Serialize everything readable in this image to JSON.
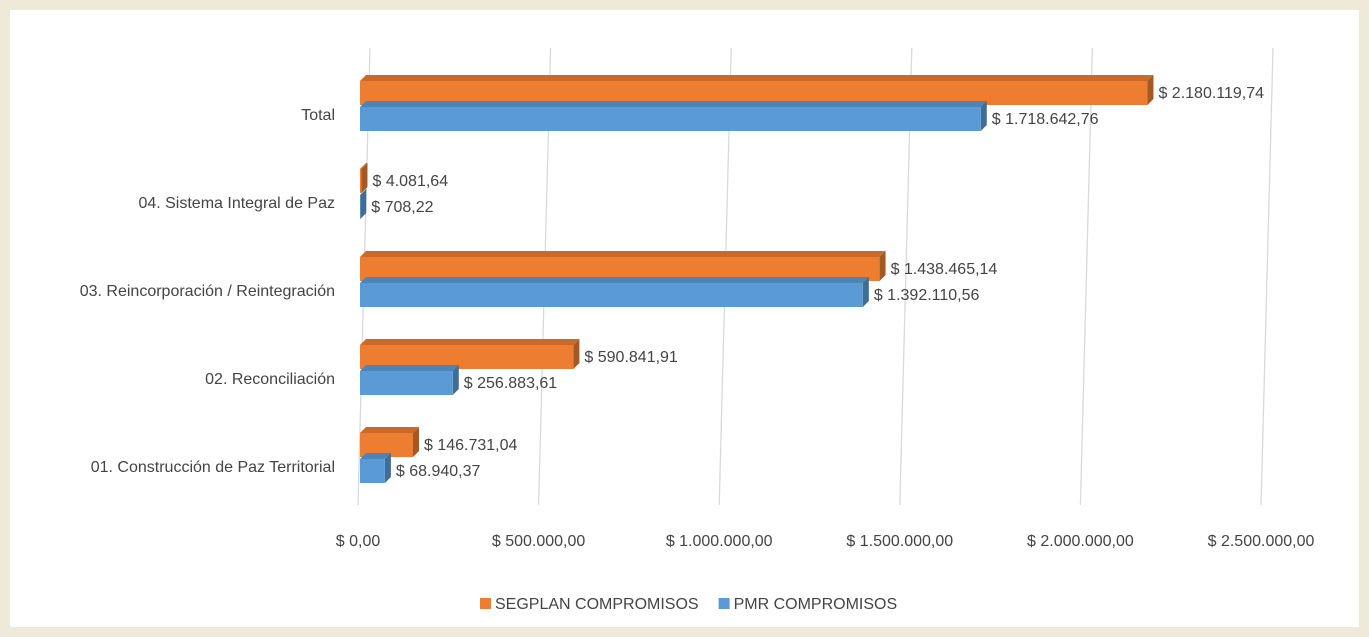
{
  "chart_data": {
    "type": "bar",
    "orientation": "horizontal",
    "categories": [
      "Total",
      "04. Sistema Integral de Paz",
      "03. Reincorporación / Reintegración",
      "02. Reconciliación",
      "01. Construcción de Paz Territorial"
    ],
    "series": [
      {
        "name": "SEGPLAN COMPROMISOS",
        "color": "#ED7D31",
        "values": [
          2180119.74,
          4081.64,
          1438465.14,
          590841.91,
          146731.04
        ],
        "value_labels": [
          "$ 2.180.119,74",
          "$ 4.081,64",
          "$ 1.438.465,14",
          "$ 590.841,91",
          "$ 146.731,04"
        ]
      },
      {
        "name": "PMR COMPROMISOS",
        "color": "#5B9BD5",
        "values": [
          1718642.76,
          708.22,
          1392110.56,
          256883.61,
          68940.37
        ],
        "value_labels": [
          "$ 1.718.642,76",
          "$ 708,22",
          "$ 1.392.110,56",
          "$ 256.883,61",
          "$ 68.940,37"
        ]
      }
    ],
    "xlim": [
      0,
      2500000
    ],
    "xticks": [
      {
        "value": 0,
        "label": "$ 0,00"
      },
      {
        "value": 500000,
        "label": "$ 500.000,00"
      },
      {
        "value": 1000000,
        "label": "$ 1.000.000,00"
      },
      {
        "value": 1500000,
        "label": "$ 1.500.000,00"
      },
      {
        "value": 2000000,
        "label": "$ 2.000.000,00"
      },
      {
        "value": 2500000,
        "label": "$ 2.500.000,00"
      }
    ],
    "grid": true,
    "legend": "bottom"
  }
}
